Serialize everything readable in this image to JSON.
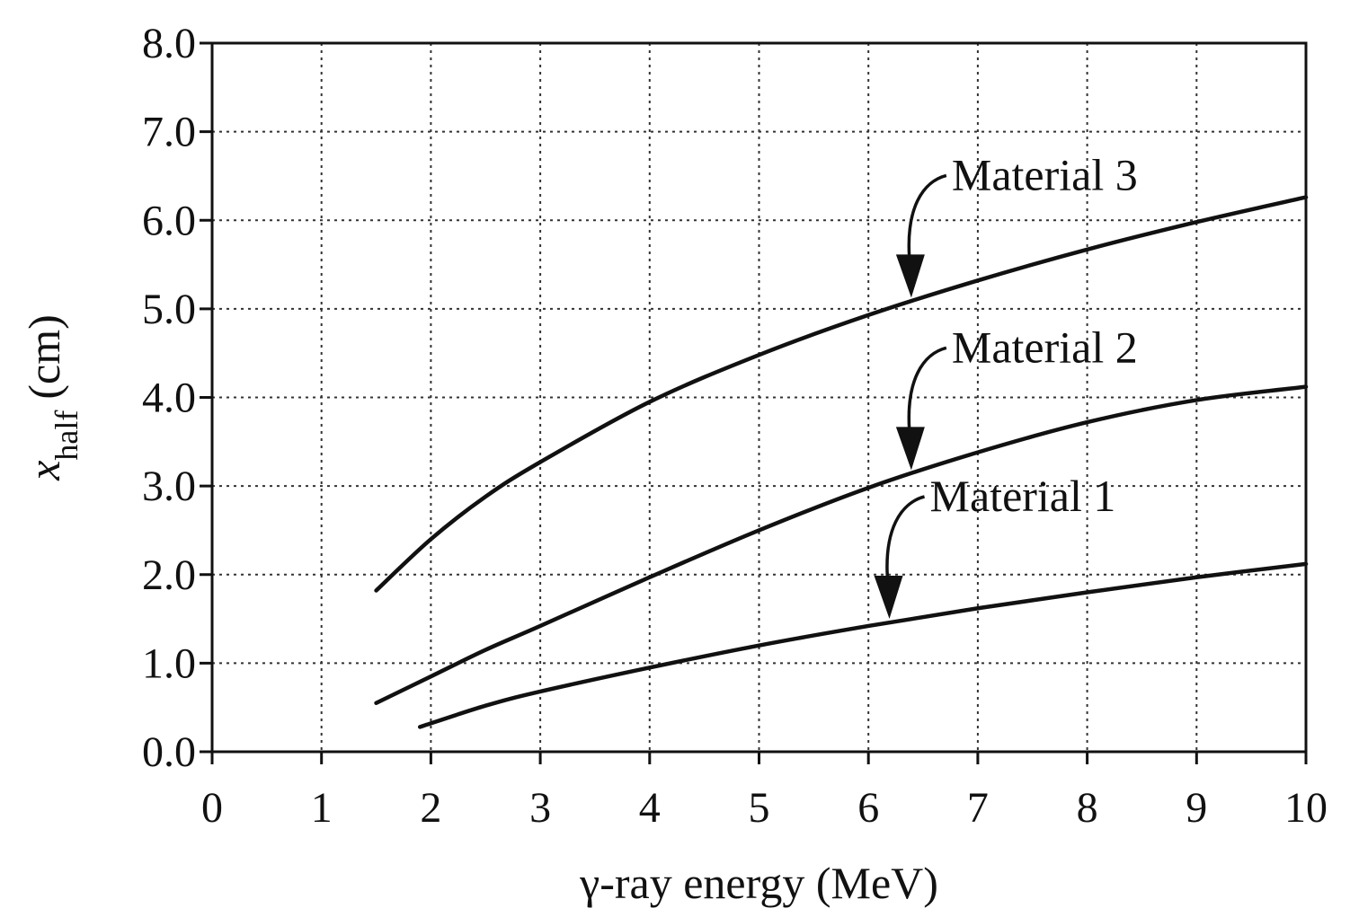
{
  "chart_data": {
    "type": "line",
    "title": "",
    "xlabel": "γ-ray energy (MeV)",
    "ylabel": {
      "main": "x",
      "sub": "half",
      "unit": "(cm)"
    },
    "xlim": [
      0,
      10
    ],
    "ylim": [
      0,
      8
    ],
    "x_ticks": [
      0,
      1,
      2,
      3,
      4,
      5,
      6,
      7,
      8,
      9,
      10
    ],
    "x_tick_labels": [
      "0",
      "1",
      "2",
      "3",
      "4",
      "5",
      "6",
      "7",
      "8",
      "9",
      "10"
    ],
    "y_ticks": [
      0,
      1,
      2,
      3,
      4,
      5,
      6,
      7,
      8
    ],
    "y_tick_labels": [
      "0.0",
      "1.0",
      "2.0",
      "3.0",
      "4.0",
      "5.0",
      "6.0",
      "7.0",
      "8.0"
    ],
    "grid": true,
    "legend": "none",
    "series": [
      {
        "name": "Material 1",
        "x": [
          1.9,
          2.5,
          3,
          4,
          5,
          6,
          7,
          8,
          9,
          10
        ],
        "y": [
          0.28,
          0.52,
          0.68,
          0.95,
          1.2,
          1.42,
          1.62,
          1.8,
          1.97,
          2.12
        ]
      },
      {
        "name": "Material 2",
        "x": [
          1.5,
          2,
          2.5,
          3,
          4,
          5,
          6,
          7,
          8,
          9,
          10
        ],
        "y": [
          0.55,
          0.85,
          1.15,
          1.42,
          1.97,
          2.5,
          2.98,
          3.38,
          3.72,
          3.97,
          4.12
        ]
      },
      {
        "name": "Material 3",
        "x": [
          1.5,
          2,
          2.5,
          3,
          4,
          5,
          6,
          7,
          8,
          9,
          10
        ],
        "y": [
          1.82,
          2.4,
          2.88,
          3.27,
          3.95,
          4.48,
          4.93,
          5.32,
          5.67,
          5.98,
          6.26
        ]
      }
    ],
    "annotations": [
      {
        "text": "Material 3",
        "points_to_x": 6.4
      },
      {
        "text": "Material 2",
        "points_to_x": 6.4
      },
      {
        "text": "Material 1",
        "points_to_x": 6.2
      }
    ]
  }
}
